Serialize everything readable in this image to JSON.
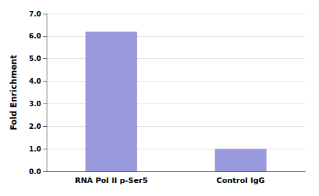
{
  "chart_data": {
    "type": "bar",
    "ylabel": "Fold Enrichment",
    "categories": [
      "RNA Pol II p-Ser5",
      "Control IgG"
    ],
    "values": [
      6.2,
      1.0
    ],
    "color": "#9999dd",
    "ylim": [
      0,
      7.0
    ],
    "yticks": [
      {
        "value": 0.0,
        "label": "0.0"
      },
      {
        "value": 1.0,
        "label": "1.0"
      },
      {
        "value": 2.0,
        "label": "2.0"
      },
      {
        "value": 3.0,
        "label": "3.0"
      },
      {
        "value": 4.0,
        "label": "4.0"
      },
      {
        "value": 5.0,
        "label": "5.0"
      },
      {
        "value": 6.0,
        "label": "6.0"
      },
      {
        "value": 7.0,
        "label": "7.0"
      }
    ],
    "grid": true
  }
}
